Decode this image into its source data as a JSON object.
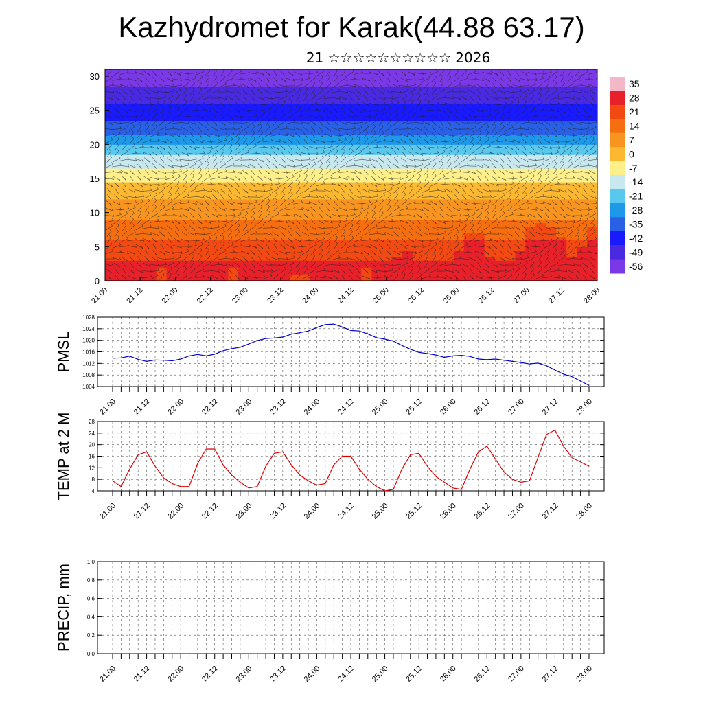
{
  "title": "Kazhydromet for Karak(44.88 63.17)",
  "subtitle": "21 ☆☆☆☆☆☆☆☆☆☆ 2026",
  "chart_data": [
    {
      "type": "heatmap",
      "name": "cross-section",
      "x_ticks": [
        "21.00",
        "21.12",
        "22.00",
        "22.12",
        "23.00",
        "23.12",
        "24.00",
        "24.12",
        "25.00",
        "25.12",
        "26.00",
        "26.12",
        "27.00",
        "27.12",
        "28.00"
      ],
      "ylim": [
        0,
        31
      ],
      "y_ticks": [
        "0",
        "5",
        "10",
        "15",
        "20",
        "25",
        "30"
      ],
      "colorbar_labels": [
        "35",
        "28",
        "21",
        "14",
        "7",
        "0",
        "-7",
        "-14",
        "-21",
        "-28",
        "-35",
        "-42",
        "-49",
        "-56"
      ],
      "colormap": [
        "#f3b8c8",
        "#e8202a",
        "#f24a12",
        "#f56e10",
        "#f89420",
        "#fbb830",
        "#fdf08a",
        "#c8e8f0",
        "#58c8ee",
        "#1e98e8",
        "#2a60e6",
        "#1a1aff",
        "#4a2ae0",
        "#7a38e6"
      ]
    },
    {
      "type": "line",
      "ylabel": "PMSL",
      "color": "#0000cc",
      "ylim": [
        1004,
        1028
      ],
      "y_ticks": [
        "1004",
        "1008",
        "1012",
        "1016",
        "1020",
        "1024",
        "1028"
      ],
      "x_ticks": [
        "21.00",
        "21.12",
        "22.00",
        "22.12",
        "23.00",
        "23.12",
        "24.00",
        "24.12",
        "25.00",
        "25.12",
        "26.00",
        "26.12",
        "27.00",
        "27.12",
        "28.00"
      ],
      "x": [
        0,
        3,
        6,
        9,
        12,
        15,
        18,
        21,
        24,
        27,
        30,
        33,
        36,
        39,
        42,
        45,
        48,
        51,
        54,
        57,
        60,
        63,
        66,
        69,
        72,
        75,
        78,
        81,
        84,
        87,
        90,
        93,
        96,
        99,
        102,
        105,
        108,
        111,
        114,
        117,
        120,
        123,
        126,
        129,
        132,
        135,
        138,
        141,
        144,
        147,
        150,
        153,
        156,
        159,
        162,
        165,
        168
      ],
      "values": [
        1013.8,
        1013.9,
        1014.5,
        1013.4,
        1012.7,
        1013.2,
        1013.1,
        1012.9,
        1013.5,
        1014.6,
        1015.1,
        1014.6,
        1015.2,
        1016.4,
        1017.1,
        1017.6,
        1018.7,
        1019.9,
        1020.6,
        1020.8,
        1021.1,
        1022.1,
        1022.6,
        1023.2,
        1024.4,
        1025.4,
        1025.6,
        1024.6,
        1023.4,
        1023.2,
        1022.2,
        1020.9,
        1020.4,
        1019.7,
        1018.2,
        1016.9,
        1015.8,
        1015.4,
        1014.9,
        1014.1,
        1014.6,
        1014.8,
        1014.4,
        1013.5,
        1013.3,
        1013.5,
        1013.1,
        1012.7,
        1012.3,
        1011.8,
        1012.1,
        1011.2,
        1009.7,
        1008.3,
        1007.4,
        1005.9,
        1004.4
      ]
    },
    {
      "type": "line",
      "ylabel": "TEMP at 2 M",
      "color": "#dd0000",
      "ylim": [
        4,
        28
      ],
      "y_ticks": [
        "4",
        "8",
        "12",
        "16",
        "20",
        "24",
        "28"
      ],
      "x_ticks": [
        "21.00",
        "21.12",
        "22.00",
        "22.12",
        "23.00",
        "23.12",
        "24.00",
        "24.12",
        "25.00",
        "25.12",
        "26.00",
        "26.12",
        "27.00",
        "27.12",
        "28.00"
      ],
      "x": [
        0,
        3,
        6,
        9,
        12,
        15,
        18,
        21,
        24,
        27,
        30,
        33,
        36,
        39,
        42,
        45,
        48,
        51,
        54,
        57,
        60,
        63,
        66,
        69,
        72,
        75,
        78,
        81,
        84,
        87,
        90,
        93,
        96,
        99,
        102,
        105,
        108,
        111,
        114,
        117,
        120,
        123,
        126,
        129,
        132,
        135,
        138,
        141,
        144,
        147,
        150,
        153,
        156,
        159,
        162,
        165,
        168
      ],
      "values": [
        7.5,
        5.5,
        11.5,
        16.5,
        17.5,
        12.5,
        8.5,
        6.5,
        5.5,
        5.5,
        13.5,
        18.5,
        18.5,
        13.0,
        9.5,
        7.0,
        5.0,
        5.5,
        12.5,
        17.0,
        17.5,
        13.0,
        9.5,
        7.5,
        6.0,
        6.5,
        13.0,
        16.0,
        16.0,
        11.5,
        8.0,
        5.5,
        4.0,
        4.5,
        11.5,
        16.5,
        17.0,
        12.5,
        9.0,
        7.0,
        5.0,
        4.5,
        11.5,
        17.5,
        19.5,
        15.0,
        10.5,
        8.0,
        7.0,
        7.5,
        15.5,
        23.5,
        25.0,
        19.5,
        15.5,
        14.0,
        12.5
      ]
    },
    {
      "type": "line",
      "ylabel": "PRECIP, mm",
      "color": "#006600",
      "ylim": [
        0.0,
        1.0
      ],
      "y_ticks": [
        "0.0",
        "0.2",
        "0.4",
        "0.6",
        "0.8",
        "1.0"
      ],
      "x_ticks": [
        "21.00",
        "21.12",
        "22.00",
        "22.12",
        "23.00",
        "23.12",
        "24.00",
        "24.12",
        "25.00",
        "25.12",
        "26.00",
        "26.12",
        "27.00",
        "27.12",
        "28.00"
      ],
      "x": [
        0,
        3,
        6,
        9,
        12,
        15,
        18,
        21,
        24,
        27,
        30,
        33,
        36,
        39,
        42,
        45,
        48,
        51,
        54,
        57,
        60,
        63,
        66,
        69,
        72,
        75,
        78,
        81,
        84,
        87,
        90,
        93,
        96,
        99,
        102,
        105,
        108,
        111,
        114,
        117,
        120,
        123,
        126,
        129,
        132,
        135,
        138,
        141,
        144,
        147,
        150,
        153,
        156,
        159,
        162,
        165,
        168
      ],
      "values": [
        0,
        0,
        0,
        0,
        0,
        0,
        0,
        0,
        0,
        0,
        0,
        0,
        0,
        0,
        0,
        0,
        0,
        0,
        0,
        0,
        0,
        0,
        0,
        0,
        0,
        0,
        0,
        0,
        0,
        0,
        0,
        0,
        0,
        0,
        0,
        0,
        0,
        0,
        0,
        0,
        0,
        0,
        0,
        0,
        0,
        0,
        0,
        0,
        0,
        0,
        0,
        0,
        0,
        0,
        0,
        0,
        0
      ]
    }
  ]
}
